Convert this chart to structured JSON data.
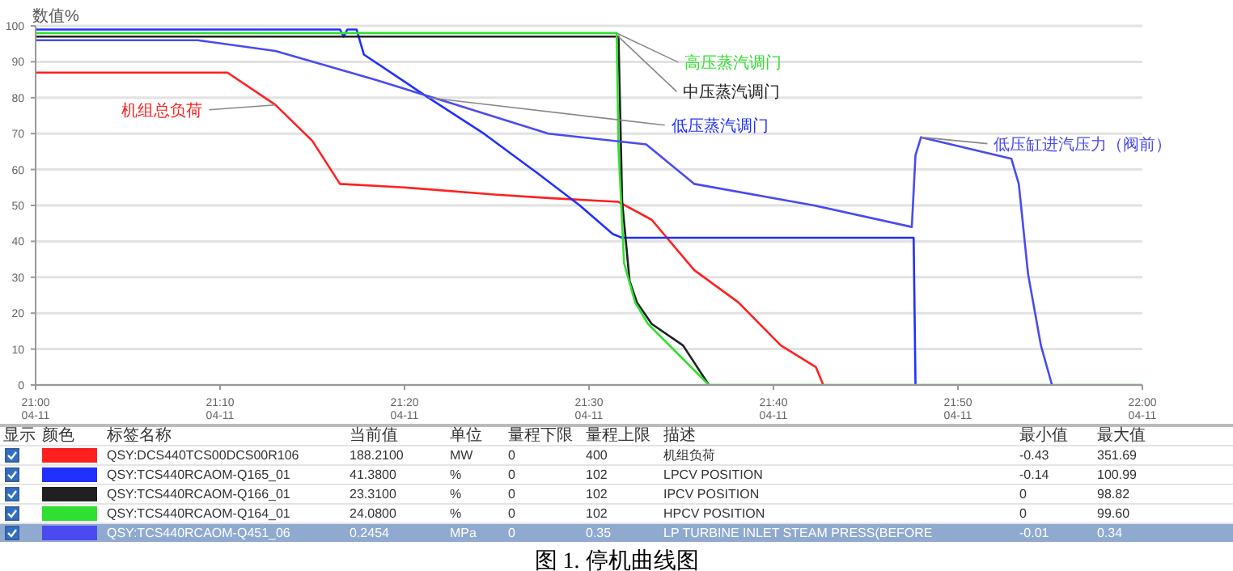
{
  "chart_data": {
    "type": "line",
    "title": "图 1.  停机曲线图",
    "ylabel": "数值%",
    "xlim": [
      "--04-11T21:00",
      "--04-11T22:00"
    ],
    "xticks": [
      {
        "value": "--04-11T21:00",
        "label": "21:00\n04-11"
      },
      {
        "value": "--04-11T21:10",
        "label": "21:10\n04-11"
      },
      {
        "value": "--04-11T21:20",
        "label": "21:20\n04-11"
      },
      {
        "value": "--04-11T21:30",
        "label": "21:30\n04-11"
      },
      {
        "value": "--04-11T21:40",
        "label": "21:40\n04-11"
      },
      {
        "value": "--04-11T21:50",
        "label": "21:50\n04-11"
      },
      {
        "value": "--04-11T22:00",
        "label": "22:00\n04-11"
      }
    ],
    "ylim": [
      0,
      100
    ],
    "yticks": [
      0,
      10,
      20,
      30,
      40,
      50,
      60,
      70,
      80,
      90,
      100
    ],
    "grid": "y",
    "series": [
      {
        "name": "机组总负荷",
        "color": "#ff2020",
        "x": [
          "--04-11T21:00",
          "--04-11T21:05",
          "--04-11T21:09",
          "--04-11T21:10:24",
          "--04-11T21:13",
          "--04-11T21:15",
          "--04-11T21:16:30",
          "--04-11T21:20",
          "--04-11T21:25",
          "--04-11T21:28",
          "--04-11T21:31:36",
          "--04-11T21:33:24",
          "--04-11T21:35:42",
          "--04-11T21:38:06",
          "--04-11T21:40:24",
          "--04-11T21:42:18",
          "--04-11T21:42:42"
        ],
        "values": [
          87,
          87,
          87,
          87,
          78,
          68,
          56,
          55,
          53,
          52,
          51,
          46,
          32,
          23,
          11,
          5,
          0
        ]
      },
      {
        "name": "低压蒸汽调门",
        "color": "#2030ff",
        "x": [
          "--04-11T21:00",
          "--04-11T21:16:30",
          "--04-11T21:16:42",
          "--04-11T21:16:54",
          "--04-11T21:17:24",
          "--04-11T21:17:48",
          "--04-11T21:21:18",
          "--04-11T21:24:18",
          "--04-11T21:27:12",
          "--04-11T21:29:30",
          "--04-11T21:31:18",
          "--04-11T21:31:48",
          "--04-11T21:47:36",
          "--04-11T21:47:42"
        ],
        "values": [
          99,
          99,
          97,
          99,
          99,
          92,
          80,
          70,
          59,
          50,
          42,
          41,
          41,
          0
        ]
      },
      {
        "name": "中压蒸汽调门",
        "color": "#202020",
        "x": [
          "--04-11T21:00",
          "--04-11T21:31:36",
          "--04-11T21:31:48",
          "--04-11T21:32:12",
          "--04-11T21:32:36",
          "--04-11T21:33:24",
          "--04-11T21:35:06",
          "--04-11T21:36:30"
        ],
        "values": [
          97,
          97,
          51,
          29,
          23,
          17,
          11,
          0
        ]
      },
      {
        "name": "高压蒸汽调门",
        "color": "#30e030",
        "x": [
          "--04-11T21:00",
          "--04-11T21:31:30",
          "--04-11T21:31:36",
          "--04-11T21:31:54",
          "--04-11T21:32:30",
          "--04-11T21:33:12",
          "--04-11T21:36:30",
          "--04-11T22:00"
        ],
        "values": [
          98,
          98,
          66,
          34,
          23,
          17,
          0,
          0
        ]
      },
      {
        "name": "低压缸进汽压力（阀前）",
        "color": "#4a4af0",
        "x": [
          "--04-11T21:00",
          "--04-11T21:08:48",
          "--04-11T21:13",
          "--04-11T21:18:24",
          "--04-11T21:22:12",
          "--04-11T21:27:48",
          "--04-11T21:31:18",
          "--04-11T21:33:06",
          "--04-11T21:35:42",
          "--04-11T21:42:12",
          "--04-11T21:47:30",
          "--04-11T21:47:42",
          "--04-11T21:48",
          "--04-11T21:52:54",
          "--04-11T21:53:18",
          "--04-11T21:53:48",
          "--04-11T21:54:30",
          "--04-11T21:55:06"
        ],
        "values": [
          96,
          96,
          93,
          85,
          79,
          70,
          68,
          67,
          56,
          50,
          44,
          64,
          69,
          63,
          56,
          31,
          11,
          0
        ]
      }
    ],
    "annotations": [
      "显示",
      "颜色",
      "标签名称",
      "当前值",
      "单位",
      "量程下限",
      "量程上限",
      "描述",
      "最小值",
      "最大值",
      "QSY:DCS440TCS00DCS00R106",
      "188.2100",
      "MW",
      "0",
      "400",
      "机组负荷",
      "-0.43",
      "351.69",
      "QSY:TCS440RCAOM-Q165_01",
      "41.3800",
      "%",
      "0",
      "102",
      "LPCV POSITION",
      "-0.14",
      "100.99",
      "QSY:TCS440RCAOM-Q166_01",
      "23.3100",
      "%",
      "0",
      "102",
      "IPCV POSITION",
      "0",
      "98.82",
      "QSY:TCS440RCAOM-Q164_01",
      "24.0800",
      "%",
      "0",
      "102",
      "HPCV POSITION",
      "0",
      "99.60",
      "QSY:TCS440RCAOM-Q451_06",
      "0.2454",
      "MPa",
      "0",
      "0.35",
      "LP TURBINE INLET STEAM PRESS(BEFORE",
      "-0.01",
      "0.34"
    ]
  }
}
